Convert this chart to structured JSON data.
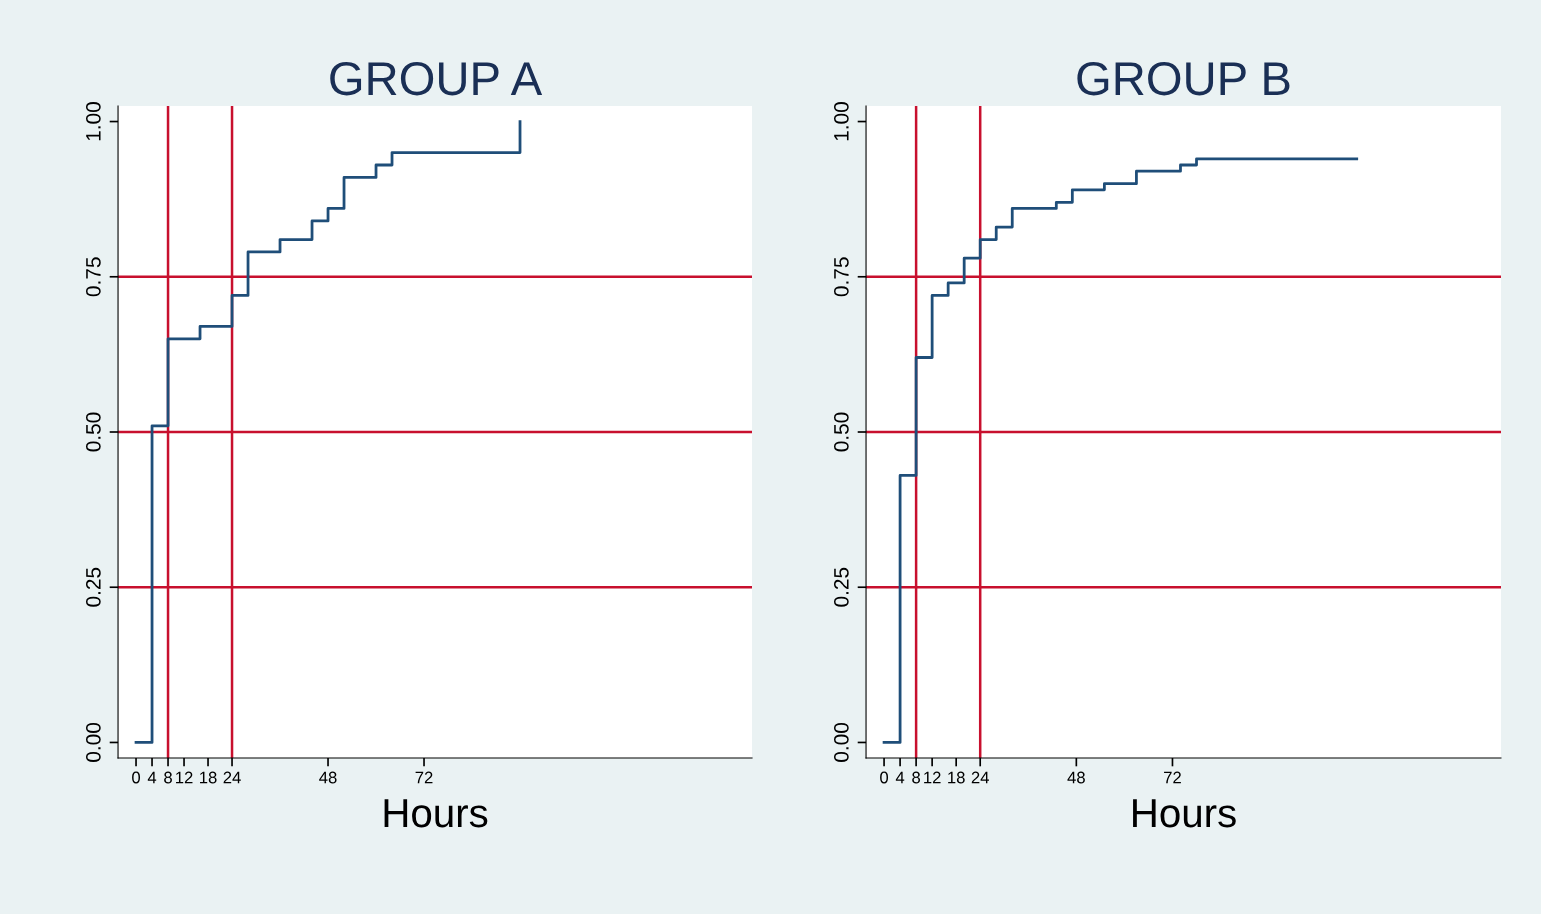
{
  "chart_data": [
    {
      "type": "step",
      "title": "GROUP A",
      "xlabel": "Hours",
      "xlim": [
        -4.5,
        154
      ],
      "ylim": [
        -0.025,
        1.025
      ],
      "xticks": [
        0,
        4,
        8,
        12,
        18,
        24,
        48,
        72
      ],
      "yticks": [
        {
          "value": 0,
          "label": "0.00"
        },
        {
          "value": 0.25,
          "label": "0.25"
        },
        {
          "value": 0.5,
          "label": "0.50"
        },
        {
          "value": 0.75,
          "label": "0.75"
        },
        {
          "value": 1,
          "label": "1.00"
        }
      ],
      "series": [
        {
          "color": "#1f4e79",
          "x": [
            0,
            4,
            8,
            16,
            24,
            28,
            36,
            44,
            48,
            52,
            60,
            64,
            96
          ],
          "values": [
            0,
            0.51,
            0.65,
            0.67,
            0.72,
            0.79,
            0.81,
            0.84,
            0.86,
            0.91,
            0.93,
            0.95,
            1.0
          ]
        }
      ],
      "ref_lines": [
        {
          "axis": "y",
          "value": 0.25,
          "color": "#c8102e"
        },
        {
          "axis": "y",
          "value": 0.5,
          "color": "#c8102e"
        },
        {
          "axis": "y",
          "value": 0.75,
          "color": "#c8102e"
        },
        {
          "axis": "x",
          "value": 8,
          "color": "#c8102e"
        },
        {
          "axis": "x",
          "value": 24,
          "color": "#c8102e"
        }
      ]
    },
    {
      "type": "step",
      "title": "GROUP B",
      "xlabel": "Hours",
      "xlim": [
        -4.5,
        154
      ],
      "ylim": [
        -0.025,
        1.025
      ],
      "xticks": [
        0,
        4,
        8,
        12,
        18,
        24,
        48,
        72
      ],
      "yticks": [
        {
          "value": 0,
          "label": "0.00"
        },
        {
          "value": 0.25,
          "label": "0.25"
        },
        {
          "value": 0.5,
          "label": "0.50"
        },
        {
          "value": 0.75,
          "label": "0.75"
        },
        {
          "value": 1,
          "label": "1.00"
        }
      ],
      "series": [
        {
          "color": "#1f4e79",
          "x": [
            0,
            4,
            8,
            12,
            16,
            20,
            24,
            28,
            32,
            43,
            47,
            55,
            63,
            74,
            78,
            118
          ],
          "values": [
            0,
            0.43,
            0.62,
            0.72,
            0.74,
            0.78,
            0.81,
            0.83,
            0.86,
            0.87,
            0.89,
            0.9,
            0.92,
            0.93,
            0.94,
            0.94
          ]
        }
      ],
      "ref_lines": [
        {
          "axis": "y",
          "value": 0.25,
          "color": "#c8102e"
        },
        {
          "axis": "y",
          "value": 0.5,
          "color": "#c8102e"
        },
        {
          "axis": "y",
          "value": 0.75,
          "color": "#c8102e"
        },
        {
          "axis": "x",
          "value": 8,
          "color": "#c8102e"
        },
        {
          "axis": "x",
          "value": 24,
          "color": "#c8102e"
        }
      ]
    }
  ]
}
